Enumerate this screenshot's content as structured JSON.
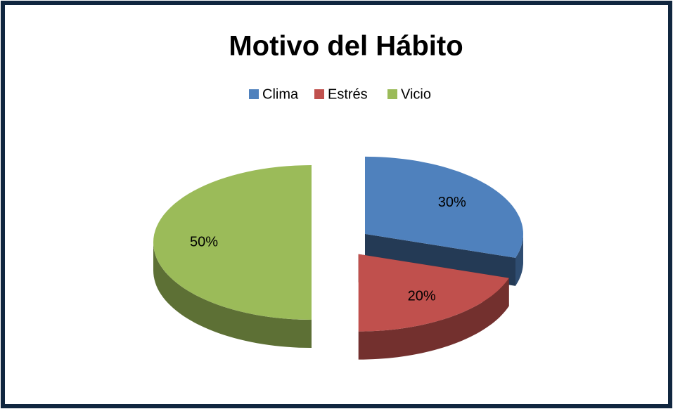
{
  "chart_data": {
    "type": "pie",
    "title": "Motivo del Hábito",
    "categories": [
      "Clima",
      "Estrés",
      "Vicio"
    ],
    "values": [
      30,
      20,
      50
    ],
    "value_labels": [
      "30%",
      "20%",
      "50%"
    ],
    "colors": [
      "#4f81bd",
      "#c0504d",
      "#9bbb59"
    ],
    "legend": "top"
  }
}
